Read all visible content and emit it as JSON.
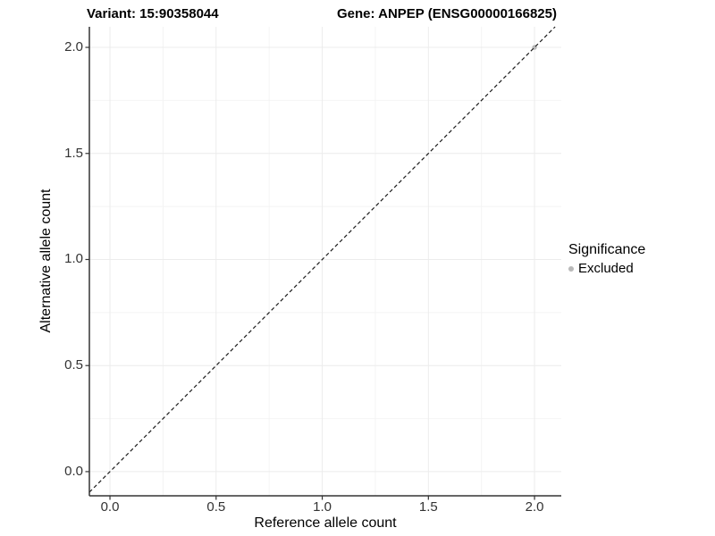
{
  "chart_data": {
    "type": "scatter",
    "title_left": "Variant: 15:90358044",
    "title_right": "Gene: ANPEP (ENSG00000166825)",
    "xlabel": "Reference allele count",
    "ylabel": "Alternative allele count",
    "xlim": [
      -0.097,
      2.126
    ],
    "ylim": [
      -0.114,
      2.097
    ],
    "x_ticks": [
      0.0,
      0.5,
      1.0,
      1.5,
      2.0
    ],
    "y_ticks": [
      0.0,
      0.5,
      1.0,
      1.5,
      2.0
    ],
    "x_tick_labels": [
      "0.0",
      "0.5",
      "1.0",
      "1.5",
      "2.0"
    ],
    "y_tick_labels": [
      "0.0",
      "0.5",
      "1.0",
      "1.5",
      "2.0"
    ],
    "grid": true,
    "minor_grid": true,
    "legend": {
      "position": "right",
      "title": "Significance",
      "items": [
        {
          "label": "Excluded",
          "color": "#b9b9b9",
          "marker": "circle"
        }
      ]
    },
    "series": [
      {
        "name": "Excluded",
        "color": "#b9b9b9",
        "points": [
          {
            "x": 2.0,
            "y": 2.0
          }
        ]
      }
    ],
    "reference_line": {
      "type": "identity",
      "slope": 1,
      "intercept": 0,
      "style": "dashed",
      "color": "#1a1a1a"
    },
    "colors": {
      "background": "#ffffff",
      "grid_major": "#ececec",
      "grid_minor": "#f4f4f4",
      "axis_line": "#333333",
      "tick_mark": "#333333",
      "tick_label": "#333333",
      "title": "#000000"
    }
  }
}
